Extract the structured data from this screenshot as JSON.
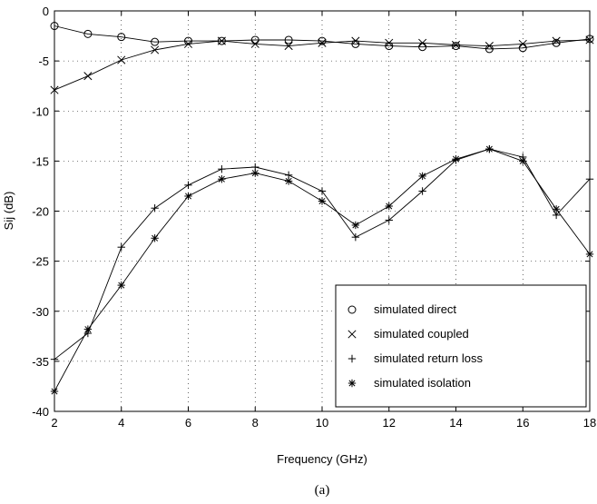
{
  "chart_data": {
    "type": "line",
    "title": "",
    "caption": "(a)",
    "xlabel": "Frequency (GHz)",
    "ylabel": "Sij (dB)",
    "xlim": [
      2,
      18
    ],
    "ylim": [
      -40,
      0
    ],
    "xticks": [
      2,
      4,
      6,
      8,
      10,
      12,
      14,
      16,
      18
    ],
    "yticks": [
      0,
      -5,
      -10,
      -15,
      -20,
      -25,
      -30,
      -35,
      -40
    ],
    "grid": true,
    "legend_position": "lower-right",
    "x": [
      2,
      3,
      4,
      5,
      6,
      7,
      8,
      9,
      10,
      11,
      12,
      13,
      14,
      15,
      16,
      17,
      18
    ],
    "series": [
      {
        "name": "simulated direct",
        "marker": "circle",
        "values": [
          -1.5,
          -2.3,
          -2.6,
          -3.1,
          -3.0,
          -3.0,
          -2.9,
          -2.9,
          -3.0,
          -3.3,
          -3.5,
          -3.6,
          -3.5,
          -3.8,
          -3.7,
          -3.2,
          -2.8
        ]
      },
      {
        "name": "simulated coupled",
        "marker": "x",
        "values": [
          -7.9,
          -6.5,
          -4.9,
          -3.9,
          -3.3,
          -3.0,
          -3.3,
          -3.5,
          -3.2,
          -3.0,
          -3.2,
          -3.2,
          -3.4,
          -3.5,
          -3.3,
          -3.0,
          -2.9
        ]
      },
      {
        "name": "simulated return loss",
        "marker": "plus",
        "values": [
          -34.8,
          -32.2,
          -23.6,
          -19.7,
          -17.4,
          -15.8,
          -15.6,
          -16.4,
          -18.0,
          -22.6,
          -20.9,
          -18.0,
          -14.9,
          -13.8,
          -14.6,
          -20.4,
          -16.8
        ]
      },
      {
        "name": "simulated isolation",
        "marker": "asterisk",
        "values": [
          -38.0,
          -31.8,
          -27.4,
          -22.7,
          -18.5,
          -16.8,
          -16.2,
          -17.0,
          -19.0,
          -21.4,
          -19.5,
          -16.5,
          -14.8,
          -13.8,
          -15.0,
          -19.8,
          -24.3
        ]
      }
    ]
  }
}
